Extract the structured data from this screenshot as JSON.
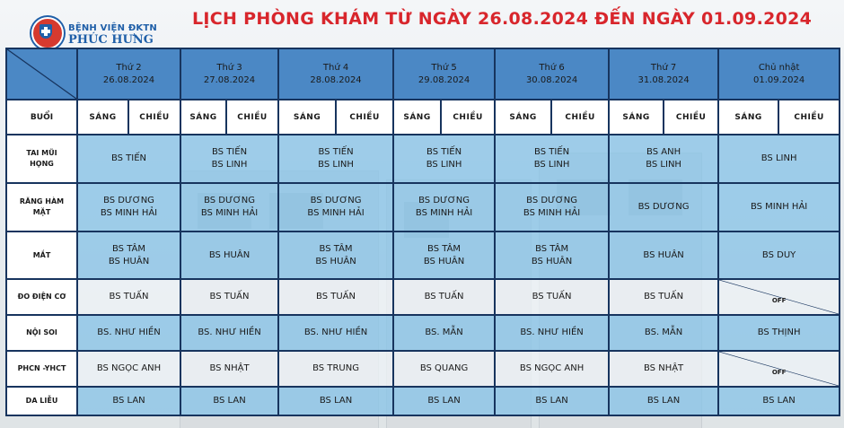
{
  "logo": {
    "line1": "BỆNH VIỆN ĐKTN",
    "line2": "PHÚC HƯNG"
  },
  "title": "LỊCH PHÒNG KHÁM TỪ NGÀY 26.08.2024 ĐẾN NGÀY 01.09.2024",
  "days": [
    {
      "name": "Thứ 2",
      "date": "26.08.2024"
    },
    {
      "name": "Thứ 3",
      "date": "27.08.2024"
    },
    {
      "name": "Thứ 4",
      "date": "28.08.2024"
    },
    {
      "name": "Thứ 5",
      "date": "29.08.2024"
    },
    {
      "name": "Thứ 6",
      "date": "30.08.2024"
    },
    {
      "name": "Thứ 7",
      "date": "31.08.2024"
    },
    {
      "name": "Chủ nhật",
      "date": "01.09.2024"
    }
  ],
  "session_label": "BUỔI",
  "sessions": {
    "morning": "SÁNG",
    "afternoon": "CHIỀU"
  },
  "off_label": "OFF",
  "departments": [
    {
      "name_lines": [
        "TAI MŨI",
        "HỌNG"
      ],
      "cells": [
        [
          "BS TIẾN"
        ],
        [
          "BS TIẾN",
          "BS LINH"
        ],
        [
          "BS TIẾN",
          "BS LINH"
        ],
        [
          "BS TIẾN",
          "BS LINH"
        ],
        [
          "BS TIẾN",
          "BS LINH"
        ],
        [
          "BS ANH",
          "BS LINH"
        ],
        [
          "BS LINH"
        ]
      ]
    },
    {
      "name_lines": [
        "RĂNG HÀM",
        "MẶT"
      ],
      "cells": [
        [
          "BS DƯƠNG",
          "BS MINH HẢI"
        ],
        [
          "BS DƯƠNG",
          "BS MINH HẢI"
        ],
        [
          "BS DƯƠNG",
          "BS MINH HẢI"
        ],
        [
          "BS DƯƠNG",
          "BS MINH HẢI"
        ],
        [
          "BS DƯƠNG",
          "BS MINH HẢI"
        ],
        [
          "BS DƯƠNG"
        ],
        [
          "BS MINH HẢI"
        ]
      ]
    },
    {
      "name_lines": [
        "MẮT"
      ],
      "cells": [
        [
          "BS TÂM",
          "BS HUÂN"
        ],
        [
          "BS HUÂN"
        ],
        [
          "BS TÂM",
          "BS HUÂN"
        ],
        [
          "BS TÂM",
          "BS HUÂN"
        ],
        [
          "BS TÂM",
          "BS HUÂN"
        ],
        [
          "BS HUÂN"
        ],
        [
          "BS DUY"
        ]
      ]
    },
    {
      "name_lines": [
        "ĐO ĐIỆN CƠ"
      ],
      "cells": [
        [
          "BS TUẤN"
        ],
        [
          "BS TUẤN"
        ],
        [
          "BS TUẤN"
        ],
        [
          "BS TUẤN"
        ],
        [
          "BS TUẤN"
        ],
        [
          "BS TUẤN"
        ],
        "OFF"
      ]
    },
    {
      "name_lines": [
        "NỘI SOI"
      ],
      "cells": [
        [
          "BS. NHƯ HIỀN"
        ],
        [
          "BS. NHƯ HIỀN"
        ],
        [
          "BS. NHƯ HIỀN"
        ],
        [
          "BS. MẪN"
        ],
        [
          "BS. NHƯ HIỀN"
        ],
        [
          "BS. MẪN"
        ],
        [
          "BS THỊNH"
        ]
      ]
    },
    {
      "name_lines": [
        "PHCN -YHCT"
      ],
      "cells": [
        [
          "BS NGỌC ANH"
        ],
        [
          "BS NHẬT"
        ],
        [
          "BS TRUNG"
        ],
        [
          "BS QUANG"
        ],
        [
          "BS NGỌC ANH"
        ],
        [
          "BS NHẬT"
        ],
        "OFF"
      ]
    },
    {
      "name_lines": [
        "DA LIỄU"
      ],
      "cells": [
        [
          "BS LAN"
        ],
        [
          "BS LAN"
        ],
        [
          "BS LAN"
        ],
        [
          "BS LAN"
        ],
        [
          "BS LAN"
        ],
        [
          "BS LAN"
        ],
        [
          "BS LAN"
        ]
      ]
    }
  ],
  "colors": {
    "header_blue": "#4b88c5",
    "cell_blue": "#8cc4e6",
    "border": "#17345e",
    "title_red": "#d8262c",
    "logo_blue": "#1f5fa8"
  }
}
